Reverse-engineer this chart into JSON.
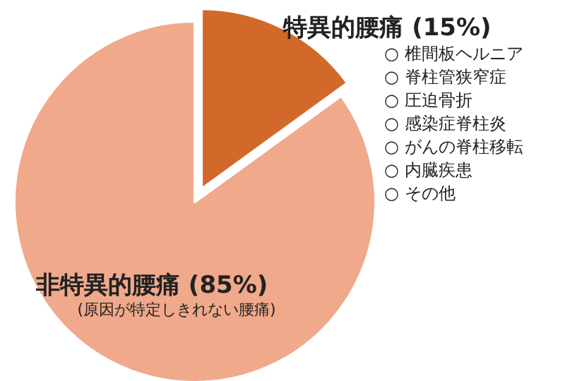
{
  "chart_data": {
    "type": "pie",
    "categories": [
      "特異的腰痛",
      "非特異的腰痛"
    ],
    "values": [
      15,
      85
    ],
    "colors": [
      "#d2692a",
      "#f0a98a"
    ],
    "value_labels": [
      "(15%)",
      "(85%)"
    ],
    "legend": false,
    "annotations": [
      "(原因が特定しきれない腰痛)",
      "○ 椎間板ヘルニア",
      "○ 脊柱管狭窄症",
      "○ 圧迫骨折",
      "○ 感染症脊柱炎",
      "○ がんの脊柱移転",
      "○ 内臓疾患",
      "○ その他"
    ]
  }
}
